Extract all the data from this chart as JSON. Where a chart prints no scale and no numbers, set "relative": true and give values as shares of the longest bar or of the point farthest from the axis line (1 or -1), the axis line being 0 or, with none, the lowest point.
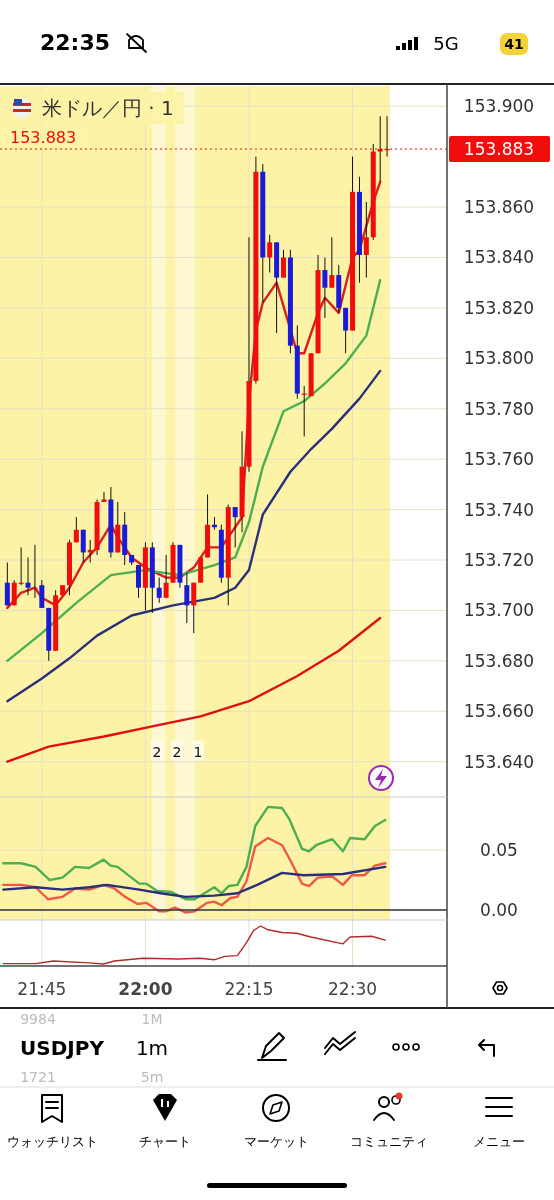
{
  "chart_data": [
    {
      "type": "candlestick",
      "title": "米ドル／円 · 1",
      "xlim": [
        21.649,
        22.728
      ],
      "ylim": [
        153.626,
        153.908
      ],
      "tick_labels": "y",
      "grid": true,
      "xticks": [
        {
          "value": 21.75,
          "label": null
        },
        {
          "value": 22.0,
          "label": null
        },
        {
          "value": 22.25,
          "label": null
        },
        {
          "value": 22.5,
          "label": null
        }
      ],
      "yticks": [
        {
          "value": 153.64,
          "label": "153.640"
        },
        {
          "value": 153.66,
          "label": "153.660"
        },
        {
          "value": 153.68,
          "label": "153.680"
        },
        {
          "value": 153.7,
          "label": "153.700"
        },
        {
          "value": 153.72,
          "label": "153.720"
        },
        {
          "value": 153.74,
          "label": "153.740"
        },
        {
          "value": 153.76,
          "label": "153.760"
        },
        {
          "value": 153.78,
          "label": "153.780"
        },
        {
          "value": 153.8,
          "label": "153.800"
        },
        {
          "value": 153.82,
          "label": "153.820"
        },
        {
          "value": 153.84,
          "label": "153.840"
        },
        {
          "value": 153.86,
          "label": "153.860"
        },
        {
          "value": 153.9,
          "label": "153.900"
        }
      ],
      "bands": [
        {
          "axis": "x",
          "from": 21.649,
          "to": 22.59,
          "color": "#fdf3a6"
        },
        {
          "axis": "x",
          "from": 22.016,
          "to": 22.05,
          "color": "#fdf7d2"
        },
        {
          "axis": "x",
          "from": 22.071,
          "to": 22.12,
          "color": "#fdf7d2"
        }
      ],
      "ref_lines": [
        {
          "axis": "y",
          "value": 153.883,
          "label": "153.883",
          "color": "#f20d0d",
          "line_style": "dotted"
        }
      ],
      "annotations": [
        {
          "text": "2",
          "x": 22.028,
          "y": 153.644
        },
        {
          "text": "2",
          "x": 22.076,
          "y": 153.644
        },
        {
          "text": "1",
          "x": 22.127,
          "y": 153.644
        }
      ],
      "x": [
        21.6667,
        21.6833,
        21.7,
        21.7167,
        21.7333,
        21.75,
        21.7667,
        21.7833,
        21.8,
        21.8167,
        21.8333,
        21.85,
        21.8667,
        21.8833,
        21.9,
        21.9167,
        21.9333,
        21.95,
        21.9667,
        21.9833,
        22,
        22.0167,
        22.0333,
        22.05,
        22.0667,
        22.0833,
        22.1,
        22.1167,
        22.1333,
        22.15,
        22.1667,
        22.1833,
        22.2,
        22.2167,
        22.2333,
        22.25,
        22.2667,
        22.2833,
        22.3,
        22.3167,
        22.3333,
        22.35,
        22.3667,
        22.3833,
        22.4,
        22.4167,
        22.4333,
        22.45,
        22.4667,
        22.4833,
        22.5,
        22.5167,
        22.5333,
        22.55,
        22.5667,
        22.5833
      ],
      "ohlc": [
        [
          153.711,
          153.719,
          153.702,
          153.702
        ],
        [
          153.702,
          153.712,
          153.702,
          153.711
        ],
        [
          153.711,
          153.725,
          153.71,
          153.711
        ],
        [
          153.711,
          153.721,
          153.706,
          153.709
        ],
        [
          153.709,
          153.726,
          153.705,
          153.709
        ],
        [
          153.71,
          153.712,
          153.701,
          153.701
        ],
        [
          153.701,
          153.701,
          153.68,
          153.684
        ],
        [
          153.684,
          153.708,
          153.684,
          153.706
        ],
        [
          153.706,
          153.71,
          153.706,
          153.71
        ],
        [
          153.71,
          153.728,
          153.706,
          153.727
        ],
        [
          153.727,
          153.737,
          153.727,
          153.732
        ],
        [
          153.732,
          153.732,
          153.719,
          153.723
        ],
        [
          153.723,
          153.728,
          153.719,
          153.724
        ],
        [
          153.724,
          153.744,
          153.722,
          153.743
        ],
        [
          153.743,
          153.747,
          153.743,
          153.744
        ],
        [
          153.744,
          153.749,
          153.721,
          153.723
        ],
        [
          153.723,
          153.743,
          153.723,
          153.734
        ],
        [
          153.734,
          153.739,
          153.718,
          153.722
        ],
        [
          153.722,
          153.722,
          153.718,
          153.719
        ],
        [
          153.718,
          153.718,
          153.705,
          153.709
        ],
        [
          153.709,
          153.727,
          153.7,
          153.725
        ],
        [
          153.725,
          153.727,
          153.699,
          153.709
        ],
        [
          153.709,
          153.713,
          153.703,
          153.705
        ],
        [
          153.705,
          153.722,
          153.705,
          153.711
        ],
        [
          153.711,
          153.727,
          153.711,
          153.726
        ],
        [
          153.726,
          153.726,
          153.709,
          153.711
        ],
        [
          153.71,
          153.715,
          153.695,
          153.702
        ],
        [
          153.702,
          153.711,
          153.691,
          153.711
        ],
        [
          153.711,
          153.721,
          153.711,
          153.721
        ],
        [
          153.721,
          153.746,
          153.721,
          153.734
        ],
        [
          153.734,
          153.737,
          153.732,
          153.733
        ],
        [
          153.732,
          153.734,
          153.711,
          153.713
        ],
        [
          153.713,
          153.742,
          153.702,
          153.741
        ],
        [
          153.741,
          153.741,
          153.725,
          153.737
        ],
        [
          153.737,
          153.771,
          153.731,
          153.757
        ],
        [
          153.757,
          153.848,
          153.755,
          153.791
        ],
        [
          153.791,
          153.88,
          153.79,
          153.874
        ],
        [
          153.874,
          153.877,
          153.822,
          153.84
        ],
        [
          153.84,
          153.849,
          153.834,
          153.846
        ],
        [
          153.846,
          153.846,
          153.81,
          153.832
        ],
        [
          153.832,
          153.843,
          153.832,
          153.84
        ],
        [
          153.84,
          153.843,
          153.802,
          153.805
        ],
        [
          153.805,
          153.813,
          153.784,
          153.786
        ],
        [
          153.786,
          153.789,
          153.769,
          153.786
        ],
        [
          153.785,
          153.802,
          153.785,
          153.802
        ],
        [
          153.802,
          153.841,
          153.802,
          153.835
        ],
        [
          153.835,
          153.84,
          153.816,
          153.828
        ],
        [
          153.828,
          153.848,
          153.828,
          153.833
        ],
        [
          153.833,
          153.837,
          153.818,
          153.82
        ],
        [
          153.82,
          153.82,
          153.802,
          153.811
        ],
        [
          153.811,
          153.88,
          153.811,
          153.866
        ],
        [
          153.866,
          153.872,
          153.83,
          153.841
        ],
        [
          153.841,
          153.862,
          153.832,
          153.848
        ],
        [
          153.848,
          153.885,
          153.847,
          153.882
        ],
        [
          153.882,
          153.896,
          153.87,
          153.883
        ],
        [
          153.883,
          153.896,
          153.88,
          153.883
        ]
      ],
      "series": [
        {
          "type": "line",
          "color": "#d81e1e",
          "x": [
            21.6667,
            21.7,
            21.7333,
            21.75,
            21.7833,
            21.8167,
            21.85,
            21.8833,
            21.9167,
            21.9333,
            21.9667,
            22.0,
            22.05,
            22.0833,
            22.1167,
            22.15,
            22.1833,
            22.2333,
            22.25,
            22.2667,
            22.2833,
            22.3167,
            22.3667,
            22.3833,
            22.4167,
            22.4333,
            22.4667,
            22.5,
            22.5167,
            22.55,
            22.5667
          ],
          "values": [
            153.701,
            153.707,
            153.709,
            153.705,
            153.702,
            153.709,
            153.719,
            153.725,
            153.734,
            153.729,
            153.721,
            153.717,
            153.713,
            153.713,
            153.717,
            153.725,
            153.725,
            153.737,
            153.783,
            153.811,
            153.822,
            153.83,
            153.802,
            153.802,
            153.818,
            153.824,
            153.818,
            153.84,
            153.843,
            153.862,
            153.87
          ]
        },
        {
          "type": "line",
          "color": "#4caf50",
          "x": [
            21.6667,
            21.75,
            21.8333,
            21.9167,
            22.0,
            22.0833,
            22.1667,
            22.2167,
            22.25,
            22.2833,
            22.3333,
            22.3833,
            22.4333,
            22.4833,
            22.5333,
            22.5667
          ],
          "values": [
            153.68,
            153.691,
            153.703,
            153.714,
            153.716,
            153.714,
            153.718,
            153.721,
            153.735,
            153.757,
            153.779,
            153.783,
            153.79,
            153.798,
            153.809,
            153.831
          ]
        },
        {
          "type": "line",
          "color": "#2a2f7a",
          "x": [
            21.6667,
            21.75,
            21.8167,
            21.8833,
            21.9667,
            22.0667,
            22.1667,
            22.2167,
            22.25,
            22.2833,
            22.35,
            22.4,
            22.45,
            22.5167,
            22.5667
          ],
          "values": [
            153.664,
            153.673,
            153.681,
            153.69,
            153.698,
            153.702,
            153.705,
            153.709,
            153.716,
            153.738,
            153.755,
            153.764,
            153.772,
            153.784,
            153.795
          ]
        },
        {
          "type": "line",
          "color": "#e01010",
          "x": [
            21.6667,
            21.7667,
            21.9,
            22.0167,
            22.1333,
            22.25,
            22.3667,
            22.4667,
            22.5667
          ],
          "values": [
            153.64,
            153.646,
            153.65,
            153.654,
            153.658,
            153.664,
            153.674,
            153.684,
            153.697
          ]
        }
      ]
    },
    {
      "type": "line",
      "xlim": [
        21.649,
        22.728
      ],
      "ylim": [
        -0.0083,
        0.0942
      ],
      "tick_labels": "y",
      "grid": true,
      "xticks": [
        {
          "value": 21.75,
          "label": null
        },
        {
          "value": 22.0,
          "label": null
        },
        {
          "value": 22.25,
          "label": null
        },
        {
          "value": 22.5,
          "label": null
        }
      ],
      "yticks": [
        {
          "value": 0,
          "label": "0.00"
        },
        {
          "value": 0.05,
          "label": "0.05"
        }
      ],
      "bands": [
        {
          "axis": "x",
          "from": 21.649,
          "to": 22.59,
          "color": "#fdf3a6"
        },
        {
          "axis": "x",
          "from": 22.016,
          "to": 22.05,
          "color": "#fdf7d2"
        },
        {
          "axis": "x",
          "from": 22.071,
          "to": 22.12,
          "color": "#fdf7d2"
        }
      ],
      "ref_lines": [
        {
          "axis": "y",
          "value": 0,
          "color": "#333333",
          "line_style": "solid"
        }
      ],
      "series": [
        {
          "color": "#4caf50",
          "x": [
            21.657,
            21.7,
            21.735,
            21.769,
            21.8,
            21.83,
            21.864,
            21.899,
            21.916,
            21.933,
            21.985,
            22.002,
            22.028,
            22.063,
            22.097,
            22.119,
            22.166,
            22.184,
            22.201,
            22.222,
            22.244,
            22.265,
            22.296,
            22.33,
            22.347,
            22.378,
            22.395,
            22.412,
            22.451,
            22.477,
            22.494,
            22.529,
            22.554,
            22.579
          ],
          "values": [
            0.039,
            0.039,
            0.036,
            0.025,
            0.027,
            0.036,
            0.035,
            0.042,
            0.037,
            0.036,
            0.022,
            0.022,
            0.016,
            0.015,
            0.009,
            0.009,
            0.019,
            0.014,
            0.02,
            0.021,
            0.036,
            0.07,
            0.086,
            0.085,
            0.076,
            0.051,
            0.049,
            0.054,
            0.059,
            0.049,
            0.06,
            0.059,
            0.07,
            0.075
          ]
        },
        {
          "color": "#f0584a",
          "x": [
            21.657,
            21.7,
            21.735,
            21.765,
            21.8,
            21.83,
            21.864,
            21.899,
            21.925,
            21.951,
            21.981,
            22.002,
            22.033,
            22.05,
            22.071,
            22.097,
            22.119,
            22.149,
            22.166,
            22.184,
            22.205,
            22.222,
            22.244,
            22.265,
            22.296,
            22.33,
            22.352,
            22.378,
            22.395,
            22.416,
            22.451,
            22.477,
            22.498,
            22.529,
            22.554,
            22.579
          ],
          "values": [
            0.021,
            0.021,
            0.019,
            0.009,
            0.011,
            0.018,
            0.017,
            0.021,
            0.018,
            0.011,
            0.005,
            0.006,
            -0.001,
            -0.001,
            0.002,
            -0.002,
            -0.001,
            0.006,
            0.007,
            0.004,
            0.01,
            0.011,
            0.024,
            0.053,
            0.06,
            0.054,
            0.04,
            0.022,
            0.02,
            0.027,
            0.028,
            0.021,
            0.029,
            0.029,
            0.037,
            0.039
          ]
        },
        {
          "color": "#2a2f7a",
          "x": [
            21.657,
            21.735,
            21.8,
            21.864,
            21.907,
            21.985,
            22.037,
            22.097,
            22.166,
            22.222,
            22.27,
            22.33,
            22.382,
            22.477,
            22.579
          ],
          "values": [
            0.017,
            0.019,
            0.017,
            0.019,
            0.021,
            0.017,
            0.014,
            0.011,
            0.012,
            0.014,
            0.021,
            0.031,
            0.029,
            0.03,
            0.036
          ]
        }
      ]
    },
    {
      "type": "line",
      "relative": true,
      "xlim": [
        21.649,
        22.728
      ],
      "tick_labels": "x",
      "grid": "x",
      "xticks": [
        {
          "value": 21.75,
          "label": "21:45"
        },
        {
          "value": 22.0,
          "label": "22:00"
        },
        {
          "value": 22.25,
          "label": "22:15"
        },
        {
          "value": 22.5,
          "label": "22:30"
        }
      ],
      "series": [
        {
          "color": "#b22a2a",
          "x": [
            21.657,
            21.735,
            21.778,
            21.864,
            21.899,
            21.925,
            21.994,
            22.08,
            22.132,
            22.166,
            22.192,
            22.222,
            22.244,
            22.261,
            22.278,
            22.296,
            22.33,
            22.365,
            22.399,
            22.477,
            22.494,
            22.546,
            22.579
          ],
          "values": [
            0.01,
            0.01,
            0.08,
            0.03,
            0,
            0.08,
            0.15,
            0.13,
            0.15,
            0.11,
            0.2,
            0.22,
            0.56,
            0.88,
            1,
            0.9,
            0.83,
            0.81,
            0.71,
            0.53,
            0.71,
            0.73,
            0.63
          ]
        }
      ]
    },
    {
      "type": "other",
      "annotations": [
        "22:35",
        "5G",
        "41",
        "USDJPY",
        "1m",
        "9984",
        "1M",
        "1721",
        "5m",
        "ウォッチリスト",
        "チャート",
        "マーケット",
        "コミュニティ",
        "メニュー"
      ]
    }
  ]
}
